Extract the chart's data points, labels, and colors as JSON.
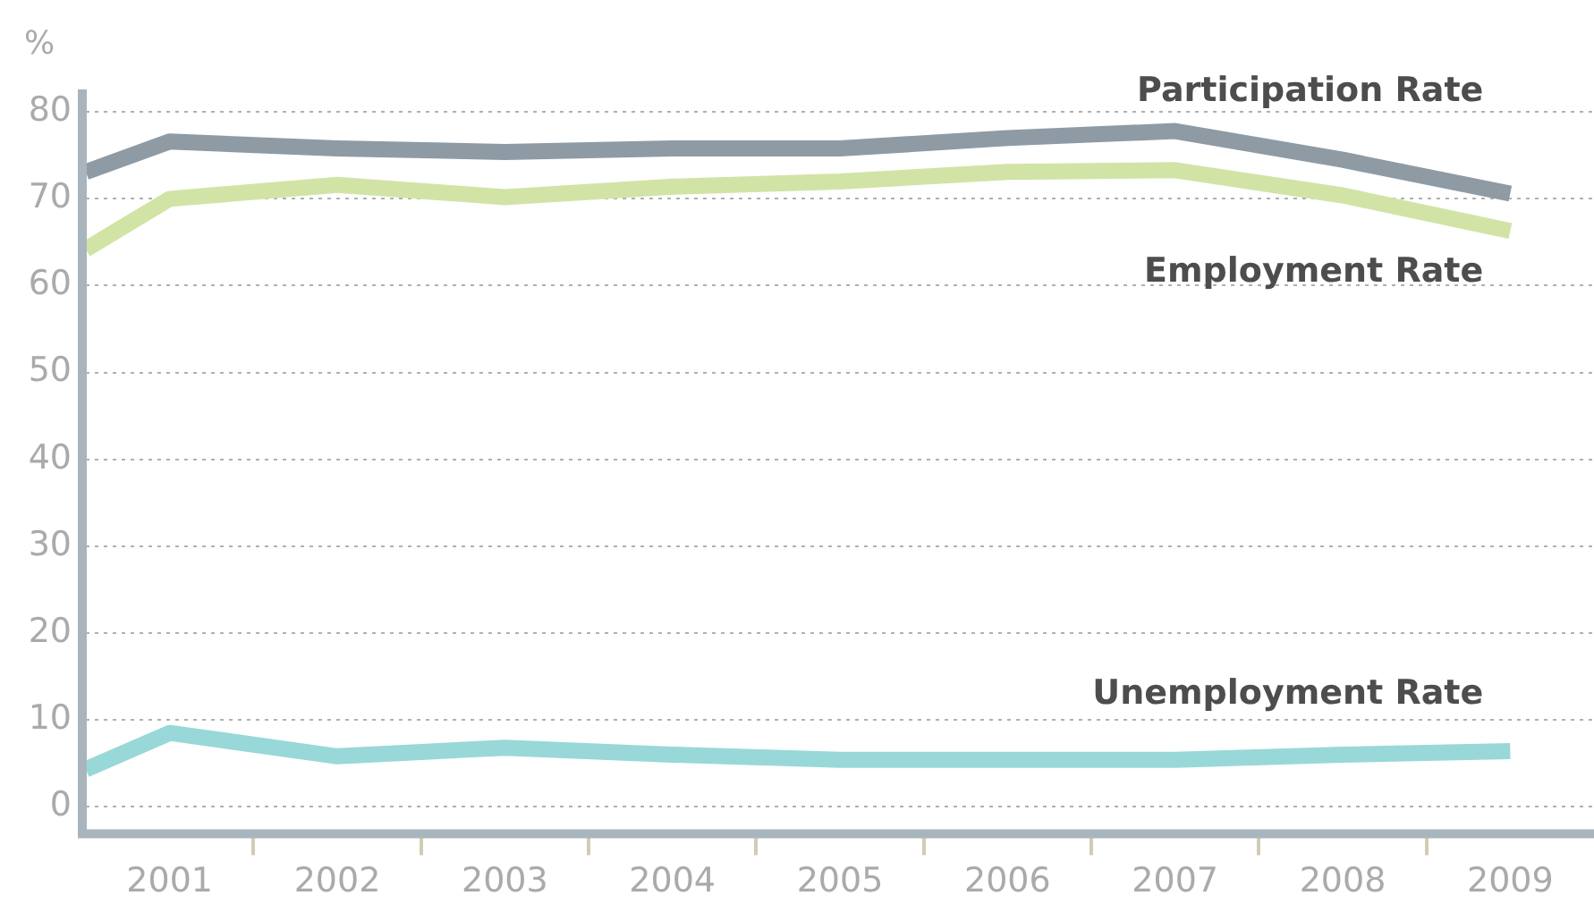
{
  "chart_data": {
    "type": "line",
    "ylabel": "%",
    "x": [
      2000.5,
      2001,
      2002,
      2003,
      2004,
      2005,
      2006,
      2007,
      2008,
      2009
    ],
    "xlim": [
      2000.5,
      2009.5
    ],
    "xticks": [
      2001,
      {
        "value": 2001.5,
        "label": null
      },
      2002,
      {
        "value": 2002.5,
        "label": null
      },
      2003,
      {
        "value": 2003.5,
        "label": null
      },
      2004,
      {
        "value": 2004.5,
        "label": null
      },
      2005,
      {
        "value": 2005.5,
        "label": null
      },
      2006,
      {
        "value": 2006.5,
        "label": null
      },
      2007,
      {
        "value": 2007.5,
        "label": null
      },
      2008,
      {
        "value": 2008.5,
        "label": null
      },
      2009
    ],
    "ylim": [
      -2.7,
      82.6
    ],
    "yticks": [
      0,
      10,
      20,
      30,
      40,
      50,
      60,
      70,
      80
    ],
    "series": [
      {
        "name": "Participation Rate",
        "color": "#8e9ba5",
        "values": [
          73.1,
          76.6,
          75.8,
          75.4,
          75.8,
          75.8,
          77.0,
          77.8,
          74.5,
          70.6
        ]
      },
      {
        "name": "Employment Rate",
        "color": "#d1e4a6",
        "values": [
          64.2,
          70.0,
          71.6,
          70.2,
          71.4,
          72.0,
          73.1,
          73.3,
          70.4,
          66.3
        ]
      },
      {
        "name": "Unemployment Rate",
        "color": "#99d8d8",
        "values": [
          4.3,
          8.5,
          5.8,
          6.8,
          6.0,
          5.4,
          5.4,
          5.4,
          6.0,
          6.4
        ]
      }
    ],
    "grid": "y",
    "legend": false,
    "marker": "none",
    "line_style": "solid"
  }
}
